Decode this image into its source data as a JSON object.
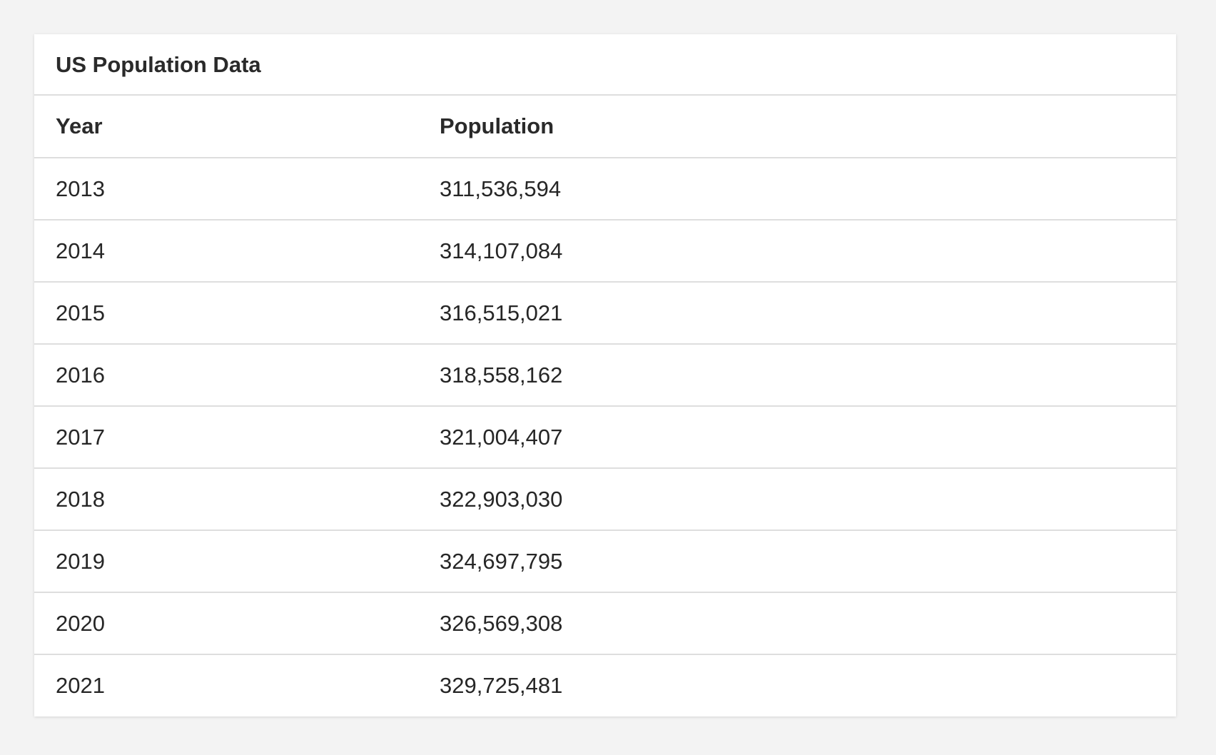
{
  "card": {
    "title": "US Population Data"
  },
  "table": {
    "headers": {
      "year": "Year",
      "population": "Population"
    },
    "rows": [
      {
        "year": "2013",
        "population": "311,536,594"
      },
      {
        "year": "2014",
        "population": "314,107,084"
      },
      {
        "year": "2015",
        "population": "316,515,021"
      },
      {
        "year": "2016",
        "population": "318,558,162"
      },
      {
        "year": "2017",
        "population": "321,004,407"
      },
      {
        "year": "2018",
        "population": "322,903,030"
      },
      {
        "year": "2019",
        "population": "324,697,795"
      },
      {
        "year": "2020",
        "population": "326,569,308"
      },
      {
        "year": "2021",
        "population": "329,725,481"
      }
    ]
  },
  "chart_data": {
    "type": "table",
    "title": "US Population Data",
    "columns": [
      "Year",
      "Population"
    ],
    "rows": [
      [
        2013,
        311536594
      ],
      [
        2014,
        314107084
      ],
      [
        2015,
        316515021
      ],
      [
        2016,
        318558162
      ],
      [
        2017,
        321004407
      ],
      [
        2018,
        322903030
      ],
      [
        2019,
        324697795
      ],
      [
        2020,
        326569308
      ],
      [
        2021,
        329725481
      ]
    ]
  }
}
